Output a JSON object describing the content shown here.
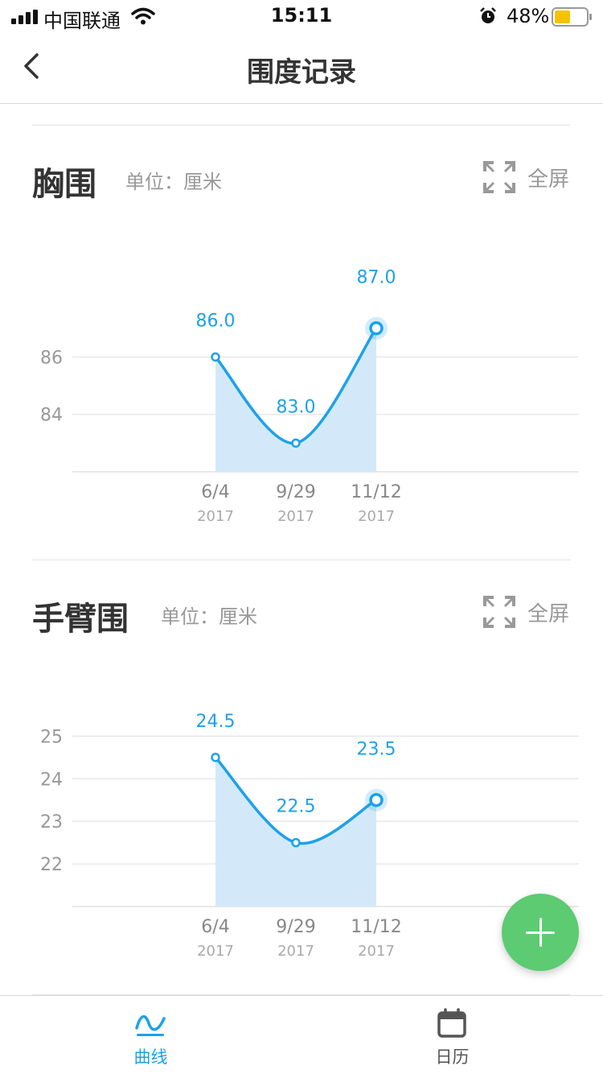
{
  "status_bar": {
    "carrier": "中国联通",
    "time": "15:11",
    "battery": "48%"
  },
  "nav": {
    "title": "围度记录"
  },
  "sections": [
    {
      "title": "胸围",
      "unit": "单位：厘米",
      "fullscreen_label": "全屏",
      "chart_data": {
        "type": "area",
        "categories": [
          "6/4",
          "9/29",
          "11/12"
        ],
        "category_years": [
          "2017",
          "2017",
          "2017"
        ],
        "values": [
          86.0,
          83.0,
          87.0
        ],
        "value_labels": [
          "86.0",
          "83.0",
          "87.0"
        ],
        "yticks": [
          84,
          86
        ],
        "ylim": [
          82,
          88.9
        ],
        "grid": true,
        "highlight_last": true
      }
    },
    {
      "title": "手臂围",
      "unit": "单位：厘米",
      "fullscreen_label": "全屏",
      "chart_data": {
        "type": "area",
        "categories": [
          "6/4",
          "9/29",
          "11/12"
        ],
        "category_years": [
          "2017",
          "2017",
          "2017"
        ],
        "values": [
          24.5,
          22.5,
          23.5
        ],
        "value_labels": [
          "24.5",
          "22.5",
          "23.5"
        ],
        "yticks": [
          22,
          23,
          24,
          25
        ],
        "ylim": [
          21,
          25.8
        ],
        "grid": true,
        "highlight_last": true
      }
    }
  ],
  "tabs": [
    {
      "label": "曲线",
      "active": true,
      "icon": "curve-icon"
    },
    {
      "label": "日历",
      "active": false,
      "icon": "calendar-icon"
    }
  ],
  "colors": {
    "accent": "#1da1ea",
    "area_fill": "#d3e9f9",
    "fab": "#5ccb72",
    "axis_text": "#999999",
    "inactive_tab": "#555555"
  }
}
